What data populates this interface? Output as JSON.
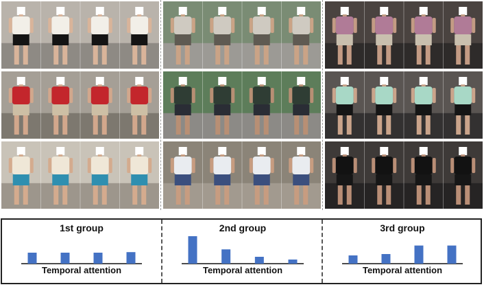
{
  "colors": {
    "bar": "#4472c4",
    "axis": "#111111",
    "divider": "#555555"
  },
  "photo_strips": [
    {
      "name": "column-1",
      "rows": [
        {
          "bg": "#b9b3ab",
          "ground": "#8e8a84",
          "top": "#f2efe8",
          "bottom": "#141414",
          "skin": "#d9b49a"
        },
        {
          "bg": "#a59f96",
          "ground": "#7d786f",
          "top": "#c3262c",
          "bottom": "#cdbfa5",
          "skin": "#d2a78c"
        },
        {
          "bg": "#c9c3b8",
          "ground": "#9d968c",
          "top": "#efe7d7",
          "bottom": "#2f8fb0",
          "skin": "#d4ab8e"
        }
      ]
    },
    {
      "name": "column-2",
      "rows": [
        {
          "bg": "#7a8c74",
          "ground": "#9c9a95",
          "top": "#cfcac1",
          "bottom": "#5f5a52",
          "skin": "#caa386"
        },
        {
          "bg": "#5d7d5a",
          "ground": "#8c8a86",
          "top": "#2f3d34",
          "bottom": "#2a2d35",
          "skin": "#b88f74"
        },
        {
          "bg": "#8b8478",
          "ground": "#a29a8f",
          "top": "#e9ecf0",
          "bottom": "#3b4f7e",
          "skin": "#c79c80"
        }
      ]
    },
    {
      "name": "column-3",
      "rows": [
        {
          "bg": "#4a4340",
          "ground": "#2e2b2a",
          "top": "#b07b97",
          "bottom": "#c9bfae",
          "skin": "#c39b84"
        },
        {
          "bg": "#5a5552",
          "ground": "#333131",
          "top": "#a8d8c6",
          "bottom": "#151515",
          "skin": "#caa48b"
        },
        {
          "bg": "#3e3a38",
          "ground": "#262424",
          "top": "#121212",
          "bottom": "#161616",
          "skin": "#b98e76"
        }
      ]
    }
  ],
  "groups": [
    {
      "title": "1st group",
      "attention": [
        0.4,
        0.4,
        0.4,
        0.42
      ]
    },
    {
      "title": "2nd group",
      "attention": [
        1.0,
        0.52,
        0.25,
        0.15
      ]
    },
    {
      "title": "3rd group",
      "attention": [
        0.3,
        0.35,
        0.66,
        0.66
      ]
    }
  ],
  "axis_label": "Temporal attention"
}
